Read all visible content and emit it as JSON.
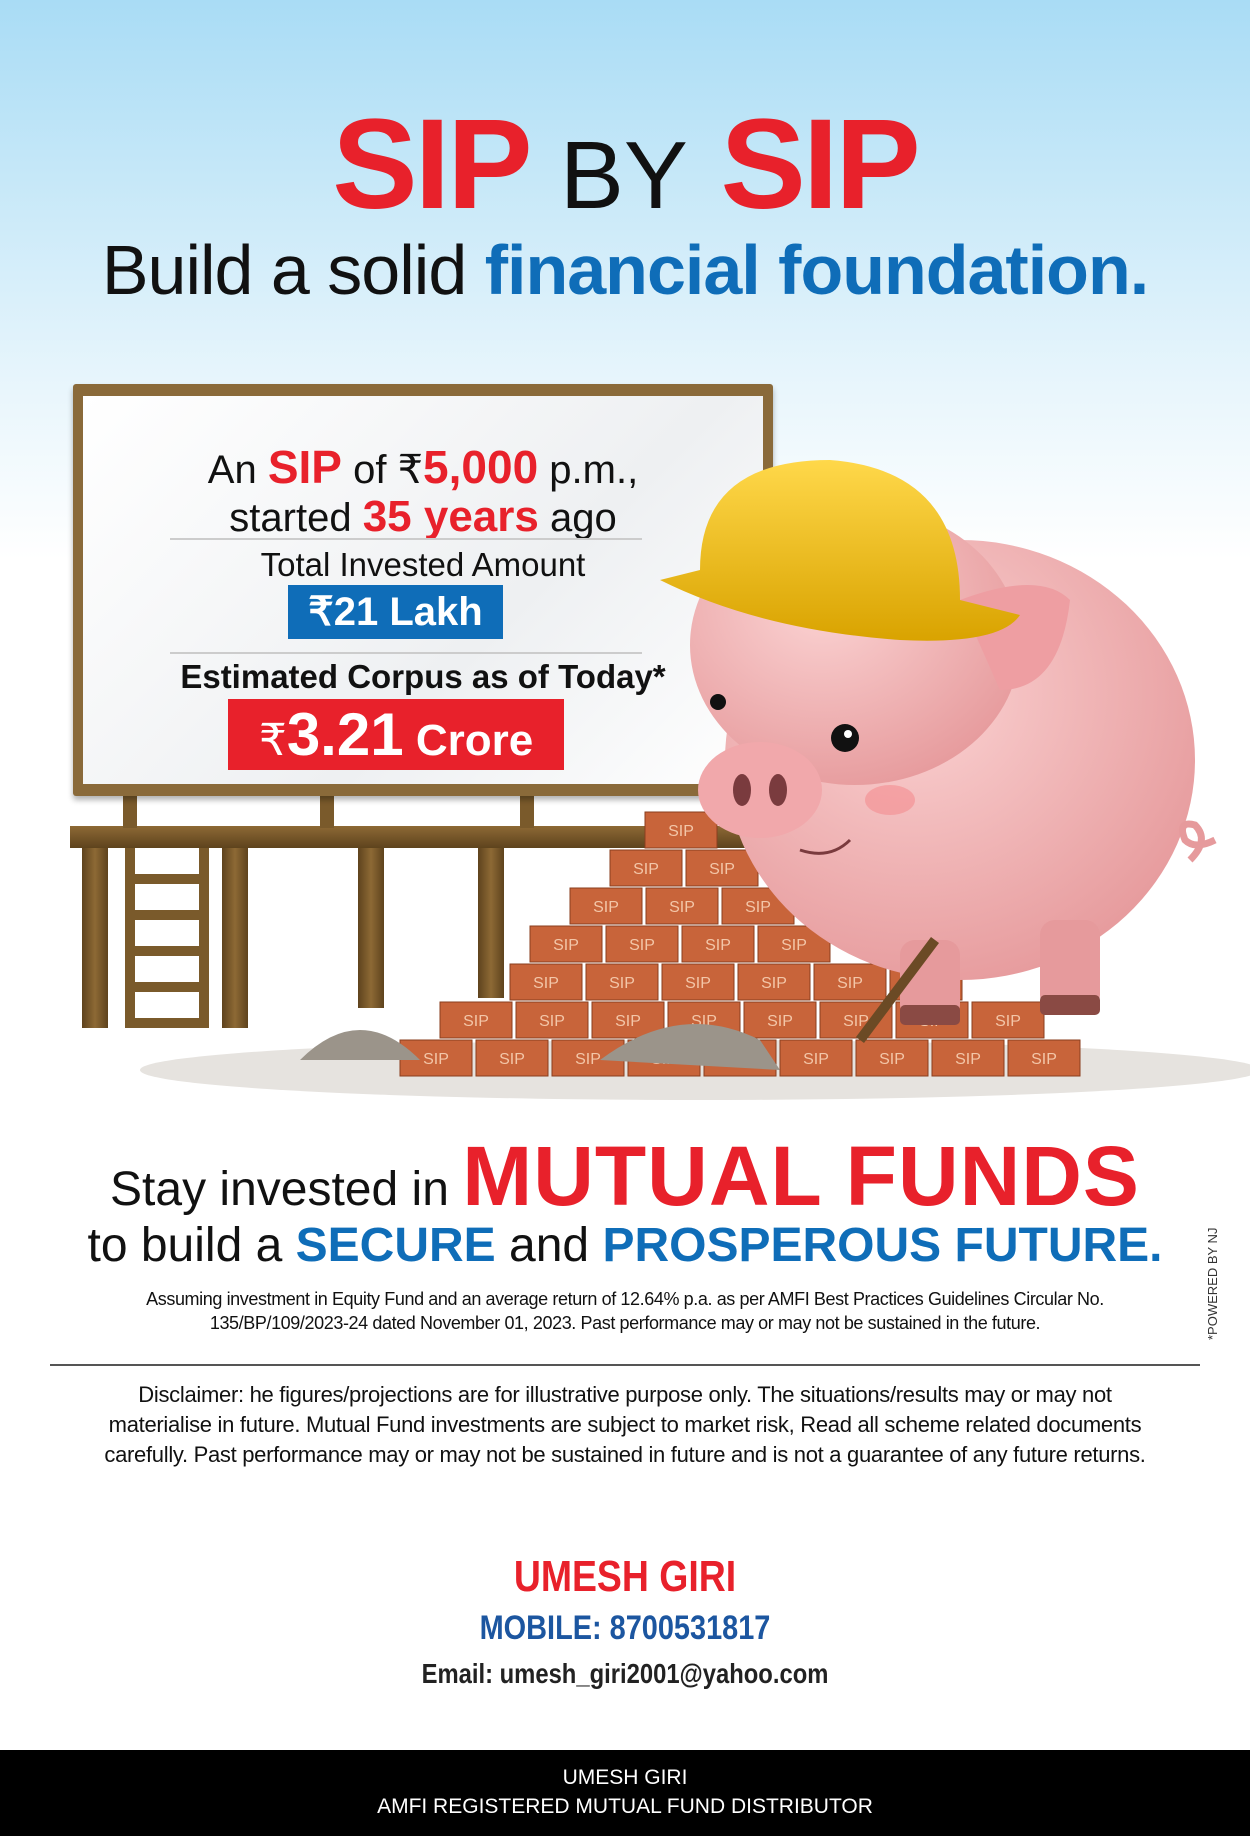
{
  "headline": {
    "sip1": "SIP",
    "by": "BY",
    "sip2": "SIP",
    "sub_a": "Build a solid ",
    "sub_b": "financial foundation."
  },
  "board": {
    "l1a": "An ",
    "l1b": "SIP",
    "l1c": " of ₹",
    "l1d": "5,000",
    "l1e": " p.m.,",
    "l2a": "started ",
    "l2b": "35 years",
    "l2c": " ago",
    "invested_label": "Total Invested Amount",
    "invested_value": "₹21 Lakh",
    "corpus_label": "Estimated Corpus as of Today*",
    "corpus_symbol": "₹",
    "corpus_value": "3.21",
    "corpus_unit": " Crore"
  },
  "brick_label": "SIP",
  "tagline": {
    "a": "Stay invested in ",
    "b": "MUTUAL FUNDS",
    "c": "to build a ",
    "d": "SECURE",
    "e": " and ",
    "f": "PROSPEROUS FUTURE."
  },
  "assumption": [
    "Assuming investment in Equity Fund and an average return of 12.64% p.a. as per AMFI Best Practices Guidelines Circular No.",
    "135/BP/109/2023-24 dated November 01, 2023. Past performance may or may not be sustained in the future."
  ],
  "powered_by": "*POWERED BY NJ",
  "disclaimer": [
    "Disclaimer: he figures/projections are for illustrative purpose only. The situations/results may or may not",
    "materialise in future. Mutual Fund investments are subject to market risk, Read all scheme related documents",
    "carefully. Past performance may or may not be sustained in future and is not a guarantee of any future returns."
  ],
  "contact": {
    "name": "UMESH GIRI",
    "mobile": "MOBILE: 8700531817",
    "email": "Email: umesh_giri2001@yahoo.com"
  },
  "footer": {
    "name": "UMESH GIRI",
    "role": "AMFI REGISTERED MUTUAL FUND DISTRIBUTOR"
  },
  "colors": {
    "red": "#e8212b",
    "blue": "#0f6db8",
    "footer_bg": "#000000"
  }
}
